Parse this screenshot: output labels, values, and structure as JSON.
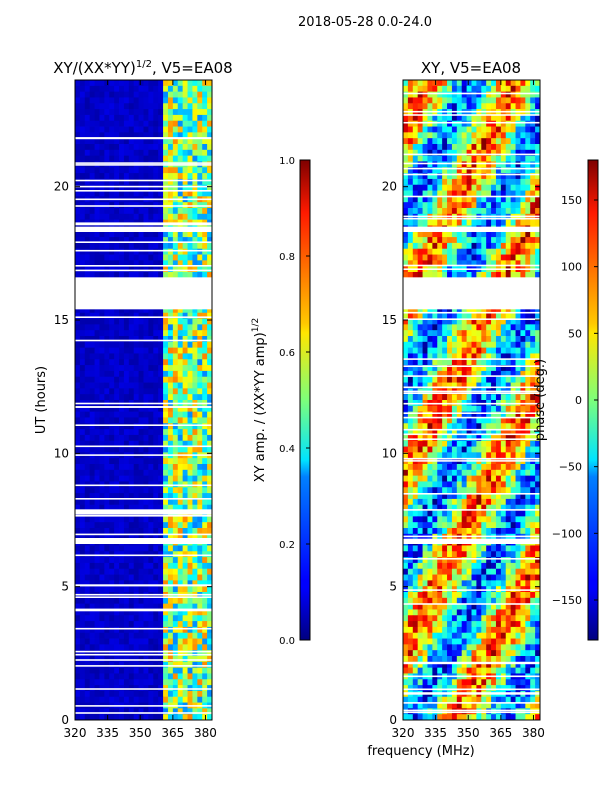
{
  "figure_title": "2018-05-28 0.0-24.0",
  "chart_data": [
    {
      "type": "heatmap",
      "title_main": "XY/(XX*YY)",
      "title_sup": "1/2",
      "title_rest": ", V5=EA08",
      "xlabel": "",
      "ylabel": "UT (hours)",
      "xlim": [
        320,
        383
      ],
      "ylim": [
        0,
        24
      ],
      "xticks": [
        320,
        335,
        350,
        365,
        380
      ],
      "yticks": [
        0,
        5,
        10,
        15,
        20
      ],
      "colorbar": {
        "label_main": "XY amp. / (XX*YY amp)",
        "label_sup": "1/2",
        "range": [
          0.0,
          1.0
        ],
        "ticks": [
          "0.0",
          "0.2",
          "0.4",
          "0.6",
          "0.8",
          "1.0"
        ]
      },
      "flagged_ut_hours": [
        [
          15.4,
          16.6
        ],
        [
          6.6,
          6.8
        ],
        [
          7.7,
          7.9
        ],
        [
          18.3,
          18.5
        ]
      ]
    },
    {
      "type": "heatmap",
      "title": "XY, V5=EA08",
      "xlabel": "frequency (MHz)",
      "ylabel": "",
      "xlim": [
        320,
        383
      ],
      "ylim": [
        0,
        24
      ],
      "xticks": [
        320,
        335,
        350,
        365,
        380
      ],
      "yticks": [
        0,
        5,
        10,
        15,
        20
      ],
      "colorbar": {
        "label": "phase (deg.)",
        "range": [
          -180,
          180
        ],
        "ticks": [
          "-150",
          "-100",
          "-50",
          "0",
          "50",
          "100",
          "150"
        ]
      },
      "flagged_ut_hours": [
        [
          15.4,
          16.6
        ],
        [
          6.6,
          6.8
        ],
        [
          18.3,
          18.5
        ]
      ]
    }
  ]
}
